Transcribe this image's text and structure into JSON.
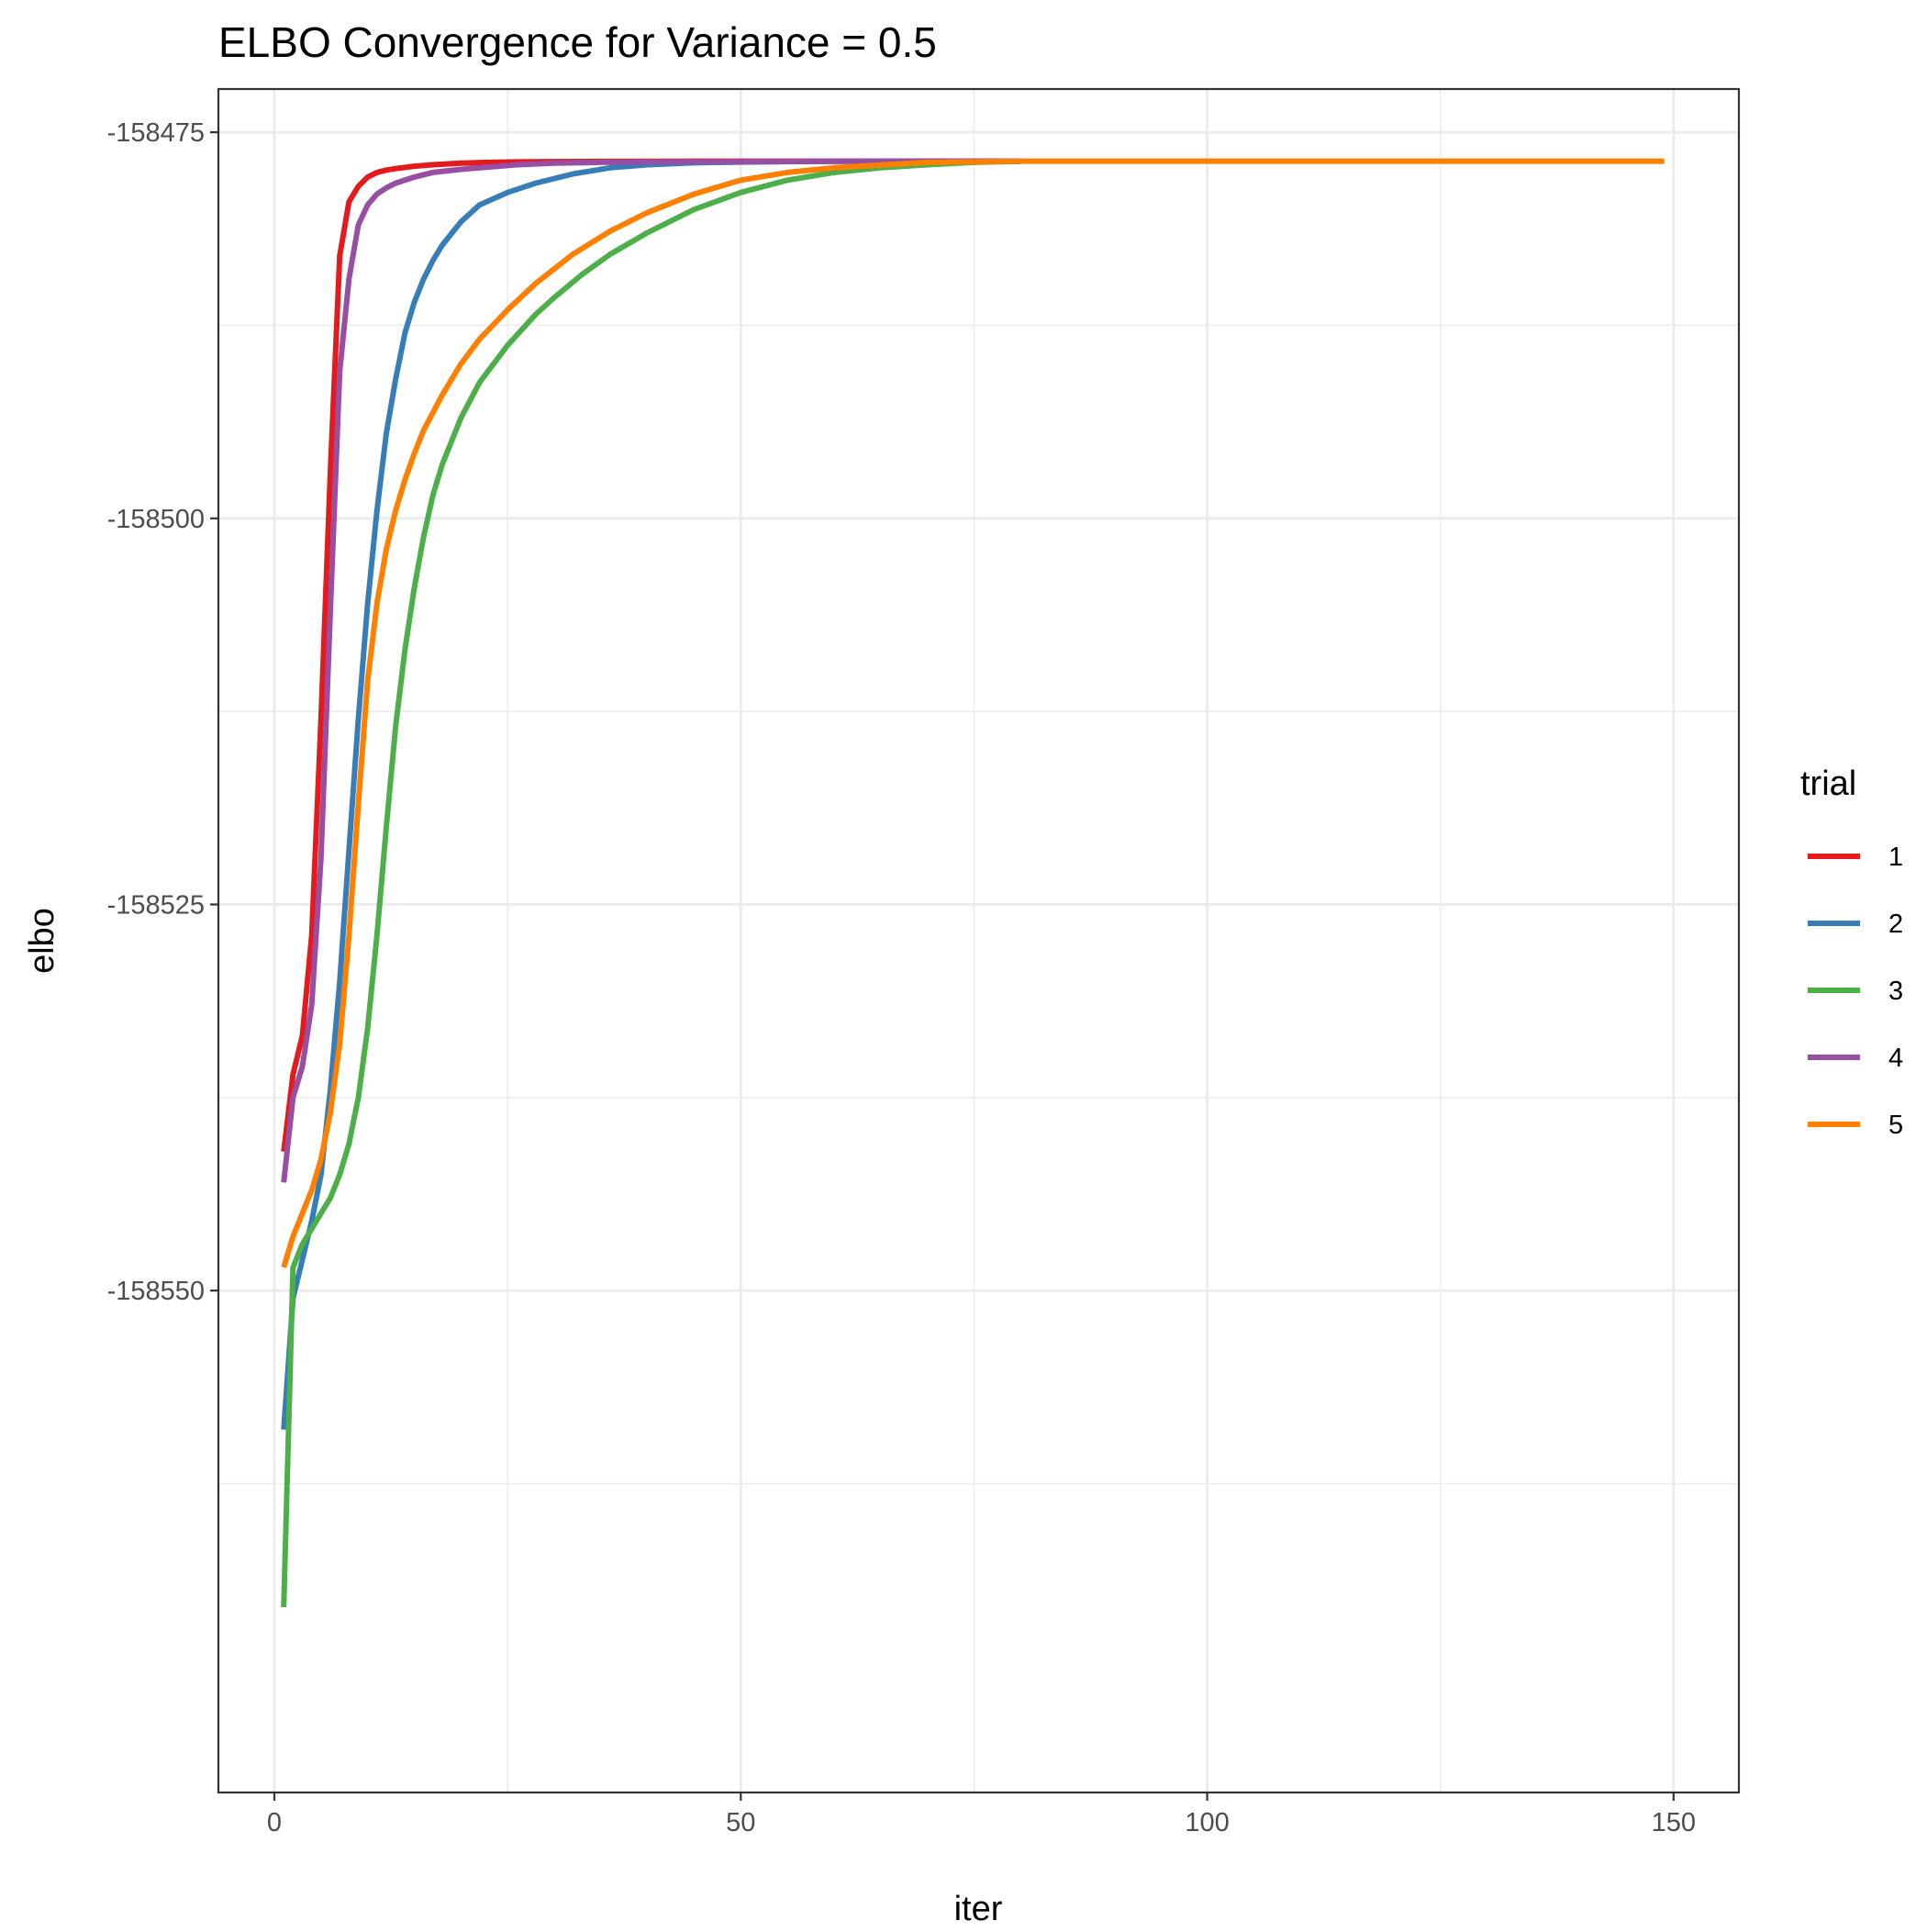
{
  "chart_data": {
    "type": "line",
    "title": "ELBO Convergence for Variance = 0.5",
    "xlabel": "iter",
    "ylabel": "elbo",
    "xlim": [
      -6,
      157
    ],
    "ylim": [
      -158582.5,
      -158472.2
    ],
    "x_ticks": [
      0,
      50,
      100,
      150
    ],
    "x_tick_labels": [
      "0",
      "50",
      "100",
      "150"
    ],
    "x_minor_ticks": [
      25,
      75,
      125
    ],
    "y_ticks": [
      -158475,
      -158500,
      -158525,
      -158550
    ],
    "y_tick_labels": [
      "-158475",
      "-158500",
      "-158525",
      "-158550"
    ],
    "y_minor_ticks": [
      -158487.5,
      -158512.5,
      -158537.5,
      -158562.5
    ],
    "grid": true,
    "legend": {
      "title": "trial",
      "position": "right"
    },
    "series": [
      {
        "name": "1",
        "color": "#E41A1C",
        "x": [
          1,
          2,
          3,
          4,
          5,
          6,
          7,
          8,
          9,
          10,
          11,
          12,
          13,
          15,
          17,
          20,
          23,
          26,
          30,
          35,
          40,
          50,
          60,
          70,
          80
        ],
        "y": [
          -158541.0,
          -158536.0,
          -158533.5,
          -158527.0,
          -158513.0,
          -158497.0,
          -158483.0,
          -158479.5,
          -158478.5,
          -158477.9,
          -158477.6,
          -158477.45,
          -158477.35,
          -158477.2,
          -158477.1,
          -158477.0,
          -158476.95,
          -158476.92,
          -158476.9,
          -158476.89,
          -158476.88,
          -158476.87,
          -158476.87,
          -158476.87,
          -158476.87
        ]
      },
      {
        "name": "2",
        "color": "#377EB8",
        "x": [
          1,
          2,
          3,
          4,
          5,
          6,
          7,
          8,
          9,
          10,
          11,
          12,
          13,
          14,
          15,
          16,
          17,
          18,
          20,
          22,
          25,
          28,
          32,
          36,
          40,
          45,
          50,
          55,
          60,
          70,
          80
        ],
        "y": [
          -158559.0,
          -158550.5,
          -158548.0,
          -158545.5,
          -158542.5,
          -158537.0,
          -158530.0,
          -158521.5,
          -158513.0,
          -158505.5,
          -158499.5,
          -158494.5,
          -158491.0,
          -158488.0,
          -158486.0,
          -158484.5,
          -158483.3,
          -158482.3,
          -158480.8,
          -158479.7,
          -158478.9,
          -158478.3,
          -158477.7,
          -158477.3,
          -158477.1,
          -158476.98,
          -158476.93,
          -158476.9,
          -158476.88,
          -158476.87,
          -158476.87
        ]
      },
      {
        "name": "3",
        "color": "#4DAF4A",
        "x": [
          1,
          2,
          3,
          4,
          5,
          6,
          7,
          8,
          9,
          10,
          11,
          12,
          13,
          14,
          15,
          16,
          17,
          18,
          20,
          22,
          25,
          28,
          30,
          33,
          36,
          40,
          45,
          50,
          55,
          60,
          65,
          70,
          75,
          80
        ],
        "y": [
          -158570.5,
          -158548.5,
          -158547.0,
          -158546.0,
          -158545.0,
          -158544.0,
          -158542.5,
          -158540.5,
          -158537.5,
          -158533.0,
          -158527.0,
          -158520.0,
          -158513.5,
          -158508.5,
          -158504.5,
          -158501.2,
          -158498.5,
          -158496.5,
          -158493.5,
          -158491.2,
          -158488.8,
          -158486.8,
          -158485.7,
          -158484.2,
          -158482.9,
          -158481.5,
          -158480.0,
          -158478.9,
          -158478.1,
          -158477.6,
          -158477.3,
          -158477.1,
          -158476.95,
          -158476.87
        ]
      },
      {
        "name": "4",
        "color": "#984EA3",
        "x": [
          1,
          2,
          3,
          4,
          5,
          6,
          7,
          8,
          9,
          10,
          11,
          12,
          13,
          15,
          17,
          20,
          23,
          26,
          30,
          35,
          40,
          50,
          60,
          70,
          80
        ],
        "y": [
          -158543.0,
          -158537.5,
          -158535.5,
          -158531.5,
          -158522.0,
          -158506.0,
          -158490.5,
          -158484.5,
          -158481.0,
          -158479.7,
          -158479.0,
          -158478.6,
          -158478.3,
          -158477.9,
          -158477.6,
          -158477.4,
          -158477.25,
          -158477.1,
          -158477.0,
          -158476.95,
          -158476.92,
          -158476.9,
          -158476.88,
          -158476.87,
          -158476.87
        ]
      },
      {
        "name": "5",
        "color": "#FF7F00",
        "x": [
          1,
          2,
          3,
          4,
          5,
          6,
          7,
          8,
          9,
          10,
          11,
          12,
          13,
          14,
          15,
          16,
          18,
          20,
          22,
          25,
          28,
          32,
          36,
          40,
          45,
          50,
          55,
          60,
          70,
          80,
          100,
          120,
          140,
          149
        ],
        "y": [
          -158548.5,
          -158546.5,
          -158545.0,
          -158543.5,
          -158541.5,
          -158538.5,
          -158534.0,
          -158527.0,
          -158518.5,
          -158510.5,
          -158505.5,
          -158502.0,
          -158499.5,
          -158497.5,
          -158495.8,
          -158494.3,
          -158492.0,
          -158490.0,
          -158488.4,
          -158486.5,
          -158484.8,
          -158482.9,
          -158481.4,
          -158480.2,
          -158479.0,
          -158478.1,
          -158477.6,
          -158477.3,
          -158476.95,
          -158476.87,
          -158476.87,
          -158476.87,
          -158476.87,
          -158476.87
        ]
      }
    ]
  }
}
